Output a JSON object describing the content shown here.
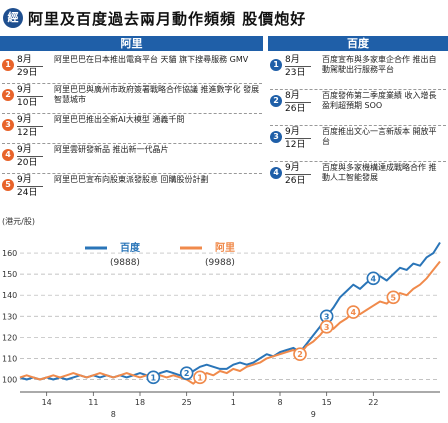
{
  "header": {
    "logo_text": "經",
    "title": "阿里及百度過去兩月動作頻頻 股價炮好"
  },
  "columns": {
    "left": "阿里",
    "right": "百度"
  },
  "events_left": [
    {
      "num": "1",
      "date_top": "8月",
      "date_bottom": "29日",
      "text": "阿里巴巴在日本推出電商平台 天貓 旗下搜尋服務 GMV"
    },
    {
      "num": "2",
      "date_top": "9月",
      "date_bottom": "10日",
      "text": "阿里巴巴與廣州市政府簽署戰略合作協議 推進數字化 發展智慧城市"
    },
    {
      "num": "3",
      "date_top": "9月",
      "date_bottom": "12日",
      "text": "阿里巴巴推出全新AI大模型 通義千問"
    },
    {
      "num": "4",
      "date_top": "9月",
      "date_bottom": "20日",
      "text": "阿里雲研發新品 推出新一代晶片"
    },
    {
      "num": "5",
      "date_top": "9月",
      "date_bottom": "24日",
      "text": "阿里巴巴宣布向股東派發股息 回購股份計劃"
    }
  ],
  "events_right": [
    {
      "num": "1",
      "date_top": "8月",
      "date_bottom": "23日",
      "text": "百度宣布與多家車企合作 推出自動駕駛出行服務平台"
    },
    {
      "num": "2",
      "date_top": "8月",
      "date_bottom": "26日",
      "text": "百度發佈第二季度業績 收入增長 盈利超預期 SOO"
    },
    {
      "num": "3",
      "date_top": "9月",
      "date_bottom": "12日",
      "text": "百度推出文心一言新版本 開放平台"
    },
    {
      "num": "4",
      "date_top": "9月",
      "date_bottom": "26日",
      "text": "百度與多家機構達成戰略合作 推動人工智能發展"
    }
  ],
  "chart_data": {
    "type": "line",
    "ylabel": "(港元/股)",
    "ylim": [
      95,
      170
    ],
    "yticks": [
      100,
      110,
      120,
      130,
      140,
      150,
      160
    ],
    "x_tick_labels": [
      "14",
      "11",
      "18",
      "25",
      "1",
      "8",
      "15",
      "22"
    ],
    "x_tick_index": [
      4,
      11,
      18,
      25,
      32,
      39,
      46,
      53
    ],
    "x_month_labels": [
      {
        "label": "8",
        "index": 14
      },
      {
        "label": "9",
        "index": 44
      }
    ],
    "n_points": 64,
    "series": [
      {
        "name": "百度",
        "code": "(9888)",
        "color": "#2a75b8",
        "values": [
          101,
          100,
          101,
          100,
          101,
          100,
          101,
          100,
          101,
          102,
          101,
          102,
          101,
          102,
          101,
          102,
          101,
          102,
          103,
          102,
          101,
          103,
          104,
          103,
          102,
          103,
          104,
          106,
          107,
          106,
          105,
          105,
          107,
          108,
          107,
          108,
          110,
          112,
          111,
          113,
          114,
          115,
          113,
          117,
          121,
          125,
          130,
          134,
          139,
          142,
          145,
          143,
          146,
          148,
          149,
          147,
          150,
          153,
          152,
          155,
          154,
          158,
          160,
          165
        ]
      },
      {
        "name": "阿里",
        "code": "(9988)",
        "color": "#f08a4b",
        "values": [
          101,
          102,
          101,
          100,
          101,
          102,
          101,
          102,
          103,
          102,
          101,
          102,
          103,
          102,
          101,
          102,
          103,
          102,
          101,
          102,
          103,
          102,
          101,
          102,
          101,
          100,
          98,
          101,
          103,
          102,
          104,
          103,
          105,
          104,
          106,
          107,
          108,
          110,
          111,
          112,
          113,
          114,
          112,
          116,
          118,
          121,
          125,
          124,
          127,
          129,
          132,
          131,
          133,
          135,
          137,
          136,
          139,
          141,
          140,
          143,
          145,
          148,
          152,
          156
        ]
      }
    ],
    "markers": [
      {
        "series": 0,
        "index": 20,
        "label": "1"
      },
      {
        "series": 0,
        "index": 25,
        "label": "2"
      },
      {
        "series": 0,
        "index": 46,
        "label": "3"
      },
      {
        "series": 0,
        "index": 53,
        "label": "4"
      },
      {
        "series": 1,
        "index": 27,
        "label": "1"
      },
      {
        "series": 1,
        "index": 42,
        "label": "2"
      },
      {
        "series": 1,
        "index": 46,
        "label": "3"
      },
      {
        "series": 1,
        "index": 50,
        "label": "4"
      },
      {
        "series": 1,
        "index": 56,
        "label": "5"
      }
    ]
  }
}
